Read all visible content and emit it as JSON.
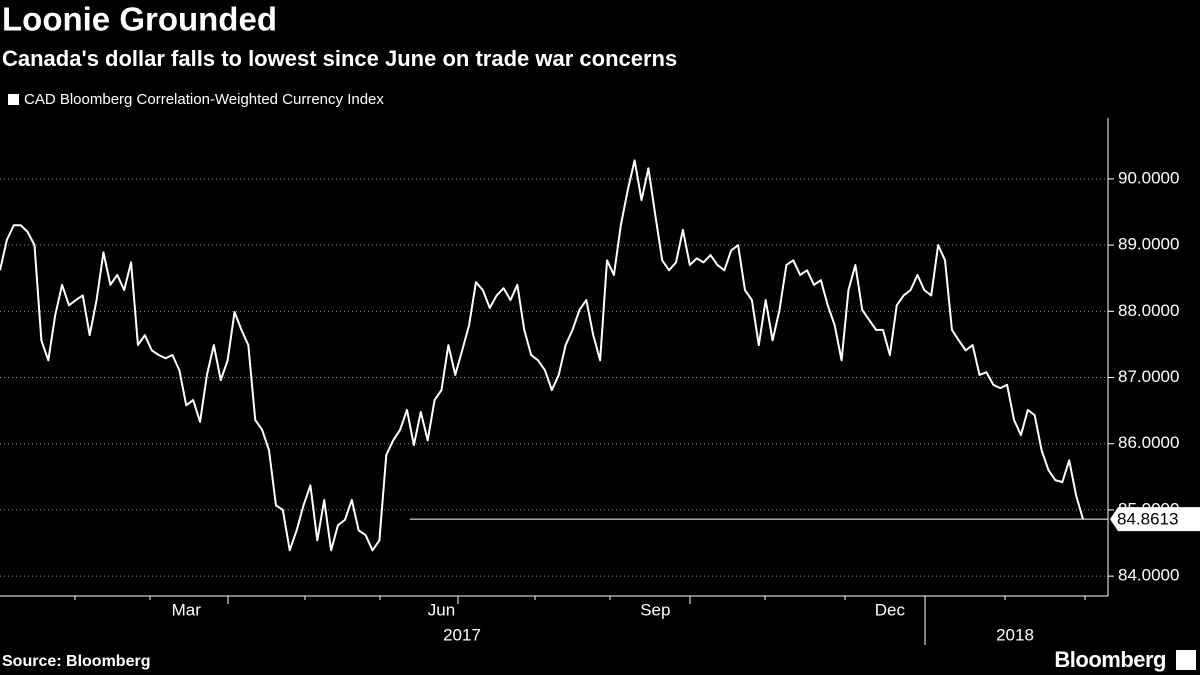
{
  "chart_data": {
    "type": "line",
    "title": "Loonie Grounded",
    "subtitle": "Canada's dollar falls to lowest since June on trade war concerns",
    "source": "Source: Bloomberg",
    "brand": "Bloomberg",
    "categories": [
      null,
      null,
      null,
      null,
      null,
      null,
      null,
      null,
      null,
      null,
      null,
      null,
      null,
      null,
      null,
      null,
      null,
      null,
      null,
      null,
      null,
      null,
      null,
      null,
      null,
      null,
      null,
      "Mar",
      null,
      null,
      null,
      null,
      null,
      null,
      null,
      null,
      null,
      null,
      null,
      null,
      null,
      null,
      null,
      null,
      null,
      null,
      null,
      null,
      null,
      null,
      null,
      null,
      null,
      null,
      null,
      null,
      null,
      null,
      null,
      null,
      null,
      null,
      null,
      null,
      "Jun",
      null,
      null,
      null,
      null,
      null,
      null,
      null,
      null,
      null,
      null,
      null,
      null,
      null,
      null,
      null,
      null,
      null,
      null,
      null,
      null,
      null,
      null,
      null,
      null,
      null,
      null,
      null,
      null,
      null,
      null,
      "Sep",
      null,
      null,
      null,
      null,
      null,
      null,
      null,
      null,
      null,
      null,
      null,
      null,
      null,
      null,
      null,
      null,
      null,
      null,
      null,
      null,
      null,
      null,
      null,
      null,
      null,
      null,
      null,
      null,
      null,
      null,
      null,
      null,
      null,
      "Dec",
      null,
      null,
      null,
      null,
      null,
      null,
      null,
      null,
      null,
      null,
      null,
      null,
      null,
      null,
      null,
      null,
      null,
      null,
      null,
      null,
      null,
      null,
      null,
      null,
      null,
      null,
      null,
      null
    ],
    "year_labels": [
      "2017",
      "2018"
    ],
    "series": [
      {
        "name": "CAD Bloomberg Correlation-Weighted Currency Index",
        "color": "#ffffff",
        "values": [
          88.62,
          89.08,
          89.3,
          89.3,
          89.2,
          89.0,
          87.56,
          87.26,
          87.94,
          88.4,
          88.09,
          88.17,
          88.24,
          87.64,
          88.17,
          88.89,
          88.4,
          88.55,
          88.32,
          88.74,
          87.49,
          87.64,
          87.41,
          87.34,
          87.29,
          87.34,
          87.11,
          86.58,
          86.66,
          86.33,
          87.04,
          87.49,
          86.96,
          87.26,
          87.99,
          87.72,
          87.49,
          86.36,
          86.21,
          85.9,
          85.07,
          85.0,
          84.39,
          84.69,
          85.07,
          85.37,
          84.54,
          85.15,
          84.39,
          84.77,
          84.85,
          85.15,
          84.69,
          84.62,
          84.39,
          84.54,
          85.83,
          86.05,
          86.21,
          86.51,
          85.98,
          86.48,
          86.05,
          86.66,
          86.81,
          87.49,
          87.04,
          87.41,
          87.79,
          88.44,
          88.32,
          88.05,
          88.24,
          88.35,
          88.17,
          88.4,
          87.72,
          87.34,
          87.26,
          87.11,
          86.81,
          87.04,
          87.49,
          87.72,
          88.02,
          88.17,
          87.64,
          87.26,
          88.77,
          88.55,
          89.3,
          89.83,
          90.28,
          89.68,
          90.16,
          89.45,
          88.77,
          88.62,
          88.74,
          89.23,
          88.7,
          88.8,
          88.74,
          88.85,
          88.7,
          88.62,
          88.92,
          89.0,
          88.32,
          88.17,
          87.49,
          88.17,
          87.56,
          88.02,
          88.7,
          88.77,
          88.55,
          88.62,
          88.4,
          88.47,
          88.09,
          87.79,
          87.26,
          88.32,
          88.7,
          88.02,
          87.87,
          87.72,
          87.72,
          87.34,
          88.09,
          88.24,
          88.32,
          88.55,
          88.32,
          88.24,
          89.0,
          88.77,
          87.72,
          87.56,
          87.41,
          87.49,
          87.04,
          87.08,
          86.89,
          86.84,
          86.89,
          86.36,
          86.13,
          86.51,
          86.43,
          85.9,
          85.6,
          85.45,
          85.42,
          85.75,
          85.22,
          84.8613
        ]
      }
    ],
    "ylim": [
      83.7,
      90.92
    ],
    "yticks": [
      {
        "value": 84,
        "label": "84.0000"
      },
      {
        "value": 85,
        "label": "85.0000"
      },
      {
        "value": 86,
        "label": "86.0000"
      },
      {
        "value": 87,
        "label": "87.0000"
      },
      {
        "value": 88,
        "label": "88.0000"
      },
      {
        "value": 89,
        "label": "89.0000"
      },
      {
        "value": 90,
        "label": "90.0000"
      }
    ],
    "grid": true
  }
}
